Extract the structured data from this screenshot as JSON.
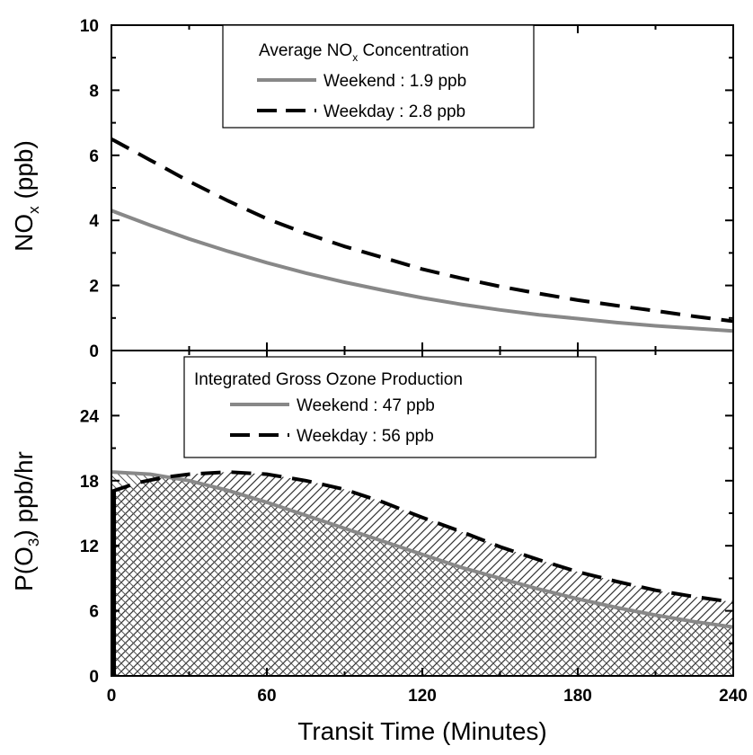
{
  "chart_data": [
    {
      "type": "line",
      "panel": "top",
      "ylabel_main": "NO",
      "ylabel_sub": "x",
      "ylabel_rest": " (ppb)",
      "xlim": [
        0,
        240
      ],
      "ylim": [
        0,
        10
      ],
      "yticks": [
        0,
        2,
        4,
        6,
        8,
        10
      ],
      "legend": {
        "title_main": "Average NO",
        "title_sub": "x",
        "title_rest": " Concentration",
        "entries": [
          "Weekend : 1.9 ppb",
          "Weekday : 2.8 ppb"
        ],
        "placement": "top-center"
      },
      "series": [
        {
          "name": "Weekend : 1.9 ppb",
          "style": "solid",
          "color": "#888888",
          "x": [
            0,
            15,
            30,
            45,
            60,
            75,
            90,
            105,
            120,
            135,
            150,
            165,
            180,
            195,
            210,
            225,
            240
          ],
          "y": [
            4.3,
            3.85,
            3.43,
            3.05,
            2.7,
            2.38,
            2.1,
            1.85,
            1.62,
            1.42,
            1.25,
            1.1,
            0.98,
            0.86,
            0.76,
            0.68,
            0.6
          ]
        },
        {
          "name": "Weekday : 2.8 ppb",
          "style": "dashed",
          "color": "#000000",
          "x": [
            0,
            15,
            30,
            45,
            60,
            75,
            90,
            105,
            120,
            135,
            150,
            165,
            180,
            195,
            210,
            225,
            240
          ],
          "y": [
            6.5,
            5.85,
            5.2,
            4.6,
            4.05,
            3.6,
            3.2,
            2.85,
            2.5,
            2.22,
            1.97,
            1.75,
            1.55,
            1.38,
            1.22,
            1.05,
            0.9
          ]
        }
      ]
    },
    {
      "type": "area",
      "panel": "bottom",
      "xlabel": "Transit Time (Minutes)",
      "ylabel_main": "P(O",
      "ylabel_sub": "3",
      "ylabel_rest": ") ppb/hr",
      "xlim": [
        0,
        240
      ],
      "ylim": [
        0,
        30
      ],
      "yticks": [
        0,
        6,
        12,
        18,
        24
      ],
      "xticks": [
        0,
        60,
        120,
        180,
        240
      ],
      "legend": {
        "title": "Integrated Gross Ozone Production",
        "entries": [
          "Weekend : 47 ppb",
          "Weekday : 56 ppb"
        ],
        "placement": "top-center"
      },
      "series": [
        {
          "name": "Weekend : 47 ppb",
          "style": "solid",
          "color": "#888888",
          "x": [
            0,
            15,
            30,
            45,
            60,
            75,
            90,
            105,
            120,
            135,
            150,
            165,
            180,
            195,
            210,
            225,
            240
          ],
          "y": [
            18.8,
            18.6,
            18.0,
            17.1,
            16.0,
            14.8,
            13.6,
            12.4,
            11.2,
            10.0,
            9.0,
            8.0,
            7.1,
            6.3,
            5.6,
            5.0,
            4.5
          ]
        },
        {
          "name": "Weekday : 56 ppb",
          "style": "dashed",
          "color": "#000000",
          "x": [
            0,
            10,
            20,
            30,
            45,
            60,
            75,
            90,
            105,
            120,
            135,
            150,
            165,
            180,
            195,
            210,
            225,
            240
          ],
          "y": [
            17.0,
            17.8,
            18.3,
            18.6,
            18.8,
            18.6,
            18.0,
            17.2,
            16.0,
            14.6,
            13.3,
            11.9,
            10.7,
            9.6,
            8.7,
            7.9,
            7.3,
            6.8
          ]
        }
      ]
    }
  ],
  "colors": {
    "weekend": "#888888",
    "weekday": "#000000",
    "hatch": "#555555"
  }
}
